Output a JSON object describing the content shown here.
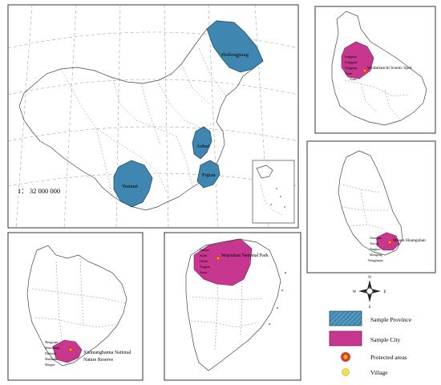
{
  "main_map": {
    "scale": "1： 32 000 000",
    "provinces": [
      "Heilongjiang",
      "Anhui",
      "Fujian",
      "Yunnan"
    ]
  },
  "insets": {
    "heilongjiang": {
      "spot": "Wudalianchi Scenic Spot",
      "villages": [
        "Lingquan",
        "Longquan",
        "Xinggong",
        "Yuxin",
        "Yixin"
      ]
    },
    "anhui": {
      "spot": "Mount Huangshan",
      "villages": [
        "Chenglan",
        "Tuocun",
        "Tangkou",
        "Shengling",
        "Wangjiaqiao"
      ]
    },
    "yunnan": {
      "spot_line1": "Xishuangbanna National",
      "spot_line2": "Nature Reserve",
      "villages": [
        "Mengyuan",
        "Manzhuang",
        "Dazhaidi",
        "Manhuan",
        "Mangao"
      ]
    },
    "fujian": {
      "spot": "Wuyishan National Park",
      "villages": [
        "Dazhou",
        "Jiufen",
        "Chishi",
        "Xingcun",
        "Aoxia"
      ]
    }
  },
  "legend": {
    "items": [
      {
        "key": "province",
        "label": "Sample Province"
      },
      {
        "key": "city",
        "label": "Sample City"
      },
      {
        "key": "protected",
        "label": "Protected areas"
      },
      {
        "key": "village",
        "label": "Village"
      }
    ],
    "compass": [
      "N",
      "S",
      "W",
      "E"
    ]
  },
  "colors": {
    "province": "#3f86b0",
    "city": "#c8378f",
    "protected_outer": "#d83a3a",
    "protected_inner": "#f4c000",
    "village": "#f2e24a"
  }
}
